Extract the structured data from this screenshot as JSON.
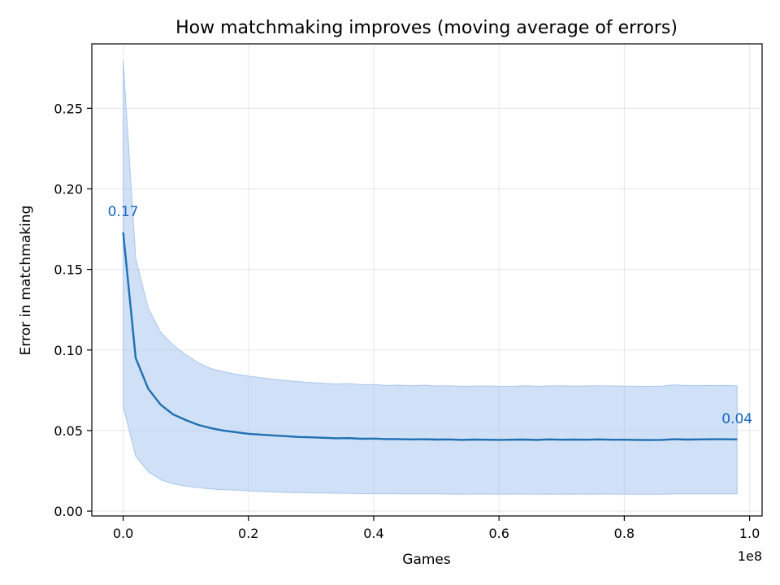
{
  "chart_data": {
    "type": "line",
    "title": "How matchmaking improves (moving average of errors)",
    "xlabel": "Games",
    "ylabel": "Error in matchmaking",
    "x_offset_label": "1e8",
    "xlim": [
      -0.05,
      1.02
    ],
    "ylim": [
      -0.003,
      0.29
    ],
    "x_ticks": [
      0.0,
      0.2,
      0.4,
      0.6,
      0.8,
      1.0
    ],
    "x_tick_labels": [
      "0.0",
      "0.2",
      "0.4",
      "0.6",
      "0.8",
      "1.0"
    ],
    "y_ticks": [
      0.0,
      0.05,
      0.1,
      0.15,
      0.2,
      0.25
    ],
    "y_tick_labels": [
      "0.00",
      "0.05",
      "0.10",
      "0.15",
      "0.20",
      "0.25"
    ],
    "grid": true,
    "colors": {
      "line": "#1f6fb2",
      "band": "#a9c6ee",
      "annotation": "#1565c0"
    },
    "series": [
      {
        "x": [
          0.0,
          0.02,
          0.04,
          0.06,
          0.08,
          0.1,
          0.12,
          0.14,
          0.16,
          0.18,
          0.2,
          0.22,
          0.24,
          0.26,
          0.28,
          0.3,
          0.32,
          0.34,
          0.36,
          0.38,
          0.4,
          0.42,
          0.44,
          0.46,
          0.48,
          0.5,
          0.52,
          0.54,
          0.56,
          0.58,
          0.6,
          0.62,
          0.64,
          0.66,
          0.68,
          0.7,
          0.72,
          0.74,
          0.76,
          0.78,
          0.8,
          0.82,
          0.84,
          0.86,
          0.88,
          0.9,
          0.92,
          0.94,
          0.96,
          0.98
        ],
        "y": [
          0.173,
          0.095,
          0.076,
          0.066,
          0.06,
          0.0565,
          0.0535,
          0.0515,
          0.05,
          0.049,
          0.048,
          0.0475,
          0.047,
          0.0465,
          0.046,
          0.0458,
          0.0455,
          0.0452,
          0.0453,
          0.0449,
          0.045,
          0.0447,
          0.0447,
          0.0445,
          0.0446,
          0.0444,
          0.0445,
          0.0442,
          0.0444,
          0.0443,
          0.0442,
          0.0443,
          0.0444,
          0.0442,
          0.0445,
          0.0443,
          0.0444,
          0.0443,
          0.0445,
          0.0443,
          0.0443,
          0.0442,
          0.0441,
          0.0442,
          0.0446,
          0.0444,
          0.0445,
          0.0446,
          0.0446,
          0.0445
        ],
        "upper": [
          0.28,
          0.157,
          0.126,
          0.111,
          0.103,
          0.097,
          0.092,
          0.0885,
          0.0865,
          0.085,
          0.0838,
          0.0828,
          0.0818,
          0.081,
          0.0803,
          0.0798,
          0.0793,
          0.0788,
          0.0792,
          0.0785,
          0.0786,
          0.078,
          0.0782,
          0.0778,
          0.0782,
          0.0777,
          0.0778,
          0.0775,
          0.0776,
          0.0777,
          0.0775,
          0.0774,
          0.0778,
          0.0775,
          0.0777,
          0.0778,
          0.0776,
          0.0777,
          0.0778,
          0.0777,
          0.0776,
          0.0775,
          0.0774,
          0.0776,
          0.0783,
          0.0779,
          0.0779,
          0.078,
          0.078,
          0.0778
        ],
        "lower": [
          0.065,
          0.034,
          0.0245,
          0.0195,
          0.0168,
          0.0155,
          0.0145,
          0.0138,
          0.0133,
          0.013,
          0.0125,
          0.0122,
          0.0119,
          0.0116,
          0.0114,
          0.0113,
          0.0112,
          0.0111,
          0.011,
          0.0109,
          0.0108,
          0.0108,
          0.0107,
          0.0107,
          0.0107,
          0.0107,
          0.0106,
          0.0105,
          0.0106,
          0.0106,
          0.0105,
          0.0106,
          0.0106,
          0.0105,
          0.0106,
          0.0105,
          0.0106,
          0.0105,
          0.0106,
          0.0106,
          0.0105,
          0.0105,
          0.0105,
          0.0105,
          0.0107,
          0.0107,
          0.0107,
          0.0107,
          0.0107,
          0.0107
        ]
      }
    ],
    "annotations": [
      {
        "text": "0.17",
        "x": 0.0,
        "y": 0.173
      },
      {
        "text": "0.04",
        "x": 0.98,
        "y": 0.0445
      }
    ]
  }
}
